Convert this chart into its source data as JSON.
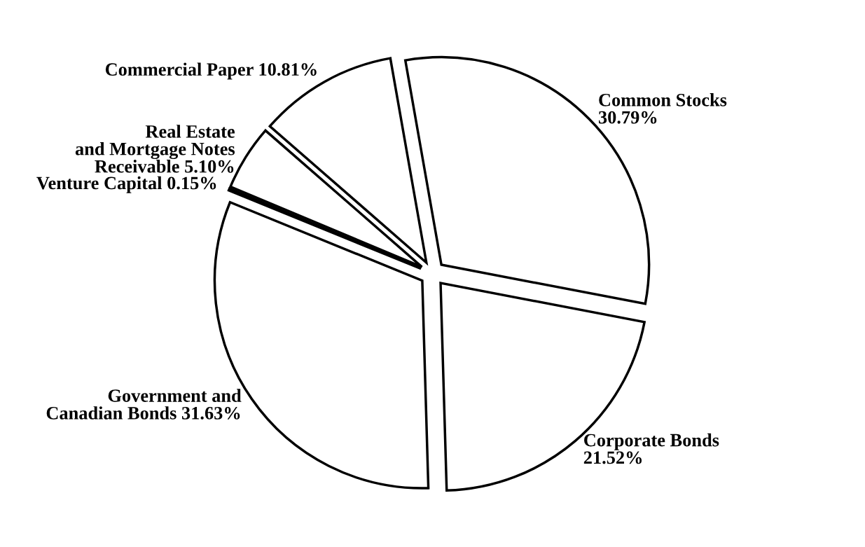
{
  "chart_data": {
    "type": "pie",
    "categories": [
      "Common Stocks",
      "Corporate Bonds",
      "Government and\nCanadian Bonds",
      "Venture Capital",
      "Real Estate\nand Mortgage Notes\nReceivable",
      "Commercial Paper"
    ],
    "values": [
      30.79,
      21.52,
      31.63,
      0.15,
      5.1,
      10.81
    ],
    "value_labels": [
      "30.79%",
      "21.52%",
      "31.63%",
      "0.15%",
      "5.10%",
      "10.81%"
    ],
    "colors": [
      "#ffffff",
      "#ffffff",
      "#ffffff",
      "#ffffff",
      "#ffffff",
      "#ffffff"
    ],
    "legend": false
  }
}
